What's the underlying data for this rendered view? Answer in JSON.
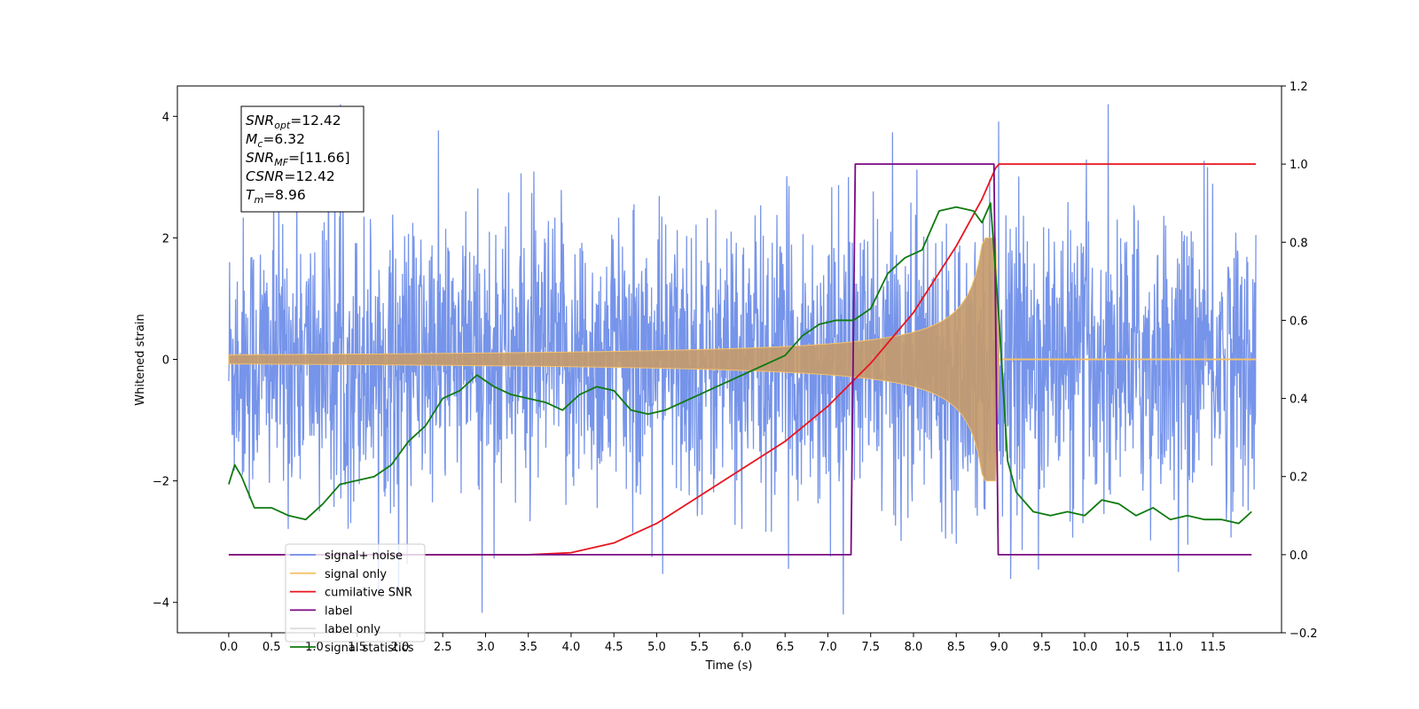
{
  "chart_data": {
    "type": "line",
    "xlabel": "Time (s)",
    "ylabel": "Whitened strain",
    "xlim": [
      -0.6,
      12.3
    ],
    "ylim": [
      -4.5,
      4.5
    ],
    "ylim_right": [
      -0.2,
      1.2
    ],
    "x_ticks": [
      "0.0",
      "0.5",
      "1.0",
      "1.5",
      "2.0",
      "2.5",
      "3.0",
      "3.5",
      "4.0",
      "4.5",
      "5.0",
      "5.5",
      "6.0",
      "6.5",
      "7.0",
      "7.5",
      "8.0",
      "8.5",
      "9.0",
      "9.5",
      "10.0",
      "10.5",
      "11.0",
      "11.5"
    ],
    "y_ticks_left": [
      "4",
      "2",
      "0",
      "−2",
      "−4"
    ],
    "y_ticks_right": [
      "1.2",
      "1.0",
      "0.8",
      "0.6",
      "0.4",
      "0.2",
      "0.0",
      "−0.2"
    ],
    "grid": false,
    "legend_position": "lower-left",
    "info_box": [
      {
        "base": "SNR",
        "sub": "opt",
        "rest": "=12.42"
      },
      {
        "base": "M",
        "sub": "c",
        "rest": "=6.32"
      },
      {
        "base": "SNR",
        "sub": "MF",
        "rest": "=[11.66]"
      },
      {
        "base": "CSNR",
        "sub": "",
        "rest": "=12.42"
      },
      {
        "base": "T",
        "sub": "m",
        "rest": "=8.96"
      }
    ],
    "series": [
      {
        "name": "signal+ noise",
        "color": "#6f8ee8",
        "axis": "left",
        "noise_std": 1.0,
        "x_start": 0.0,
        "x_end": 12.0
      },
      {
        "name": "signal only",
        "color": "#f5c26b",
        "axis": "left",
        "chirp_peak_time": 8.96,
        "chirp_peak_amp": 2.0,
        "x_start": 0.0,
        "x_end": 12.0
      },
      {
        "name": "cumilative SNR",
        "color": "#e8141e",
        "axis": "right",
        "x": [
          0,
          3.5,
          4.0,
          4.5,
          5.0,
          5.5,
          6.0,
          6.5,
          7.0,
          7.5,
          8.0,
          8.5,
          8.8,
          8.96,
          9.0,
          12.0
        ],
        "y": [
          0,
          0,
          0.005,
          0.03,
          0.08,
          0.15,
          0.22,
          0.29,
          0.38,
          0.49,
          0.62,
          0.79,
          0.91,
          0.99,
          1.0,
          1.0
        ]
      },
      {
        "name": "label",
        "color": "#7a0a82",
        "axis": "right",
        "x": [
          0,
          7.27,
          7.32,
          8.94,
          8.99,
          11.95
        ],
        "y": [
          0,
          0,
          1,
          1,
          0,
          0
        ]
      },
      {
        "name": "label only",
        "color": "#dddddd",
        "axis": "right",
        "x": [],
        "y": []
      },
      {
        "name": "signal statistics",
        "color": "#0f7a0f",
        "axis": "right",
        "x": [
          0.0,
          0.07,
          0.15,
          0.3,
          0.5,
          0.7,
          0.9,
          1.1,
          1.3,
          1.5,
          1.7,
          1.9,
          2.1,
          2.3,
          2.5,
          2.7,
          2.9,
          3.1,
          3.3,
          3.5,
          3.7,
          3.9,
          4.1,
          4.3,
          4.5,
          4.7,
          4.9,
          5.1,
          5.3,
          5.5,
          5.7,
          5.9,
          6.1,
          6.3,
          6.5,
          6.7,
          6.9,
          7.1,
          7.3,
          7.5,
          7.7,
          7.9,
          8.1,
          8.3,
          8.5,
          8.7,
          8.8,
          8.9,
          9.0,
          9.1,
          9.2,
          9.4,
          9.6,
          9.8,
          10.0,
          10.2,
          10.4,
          10.6,
          10.8,
          11.0,
          11.2,
          11.4,
          11.6,
          11.8,
          11.95
        ],
        "y": [
          0.18,
          0.23,
          0.2,
          0.12,
          0.12,
          0.1,
          0.09,
          0.13,
          0.18,
          0.19,
          0.2,
          0.23,
          0.29,
          0.33,
          0.4,
          0.42,
          0.46,
          0.43,
          0.41,
          0.4,
          0.39,
          0.37,
          0.41,
          0.43,
          0.42,
          0.37,
          0.36,
          0.37,
          0.39,
          0.41,
          0.43,
          0.45,
          0.47,
          0.49,
          0.51,
          0.56,
          0.59,
          0.6,
          0.6,
          0.63,
          0.72,
          0.76,
          0.78,
          0.88,
          0.89,
          0.88,
          0.85,
          0.9,
          0.6,
          0.24,
          0.16,
          0.11,
          0.1,
          0.11,
          0.1,
          0.14,
          0.13,
          0.1,
          0.12,
          0.09,
          0.1,
          0.09,
          0.09,
          0.08,
          0.11
        ]
      }
    ]
  }
}
